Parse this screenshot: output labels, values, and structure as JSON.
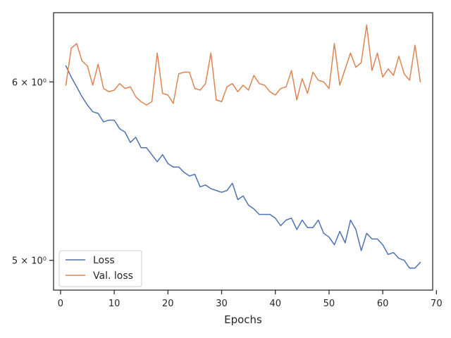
{
  "chart_data": {
    "type": "line",
    "title": "",
    "xlabel": "Epochs",
    "ylabel": "",
    "y_scale": "log",
    "xlim": [
      -1.3,
      69.3
    ],
    "ylim": [
      4.85,
      6.44
    ],
    "grid": false,
    "legend_position": "lower-left",
    "x_ticks": [
      {
        "value": 0,
        "label": "0"
      },
      {
        "value": 10,
        "label": "10"
      },
      {
        "value": 20,
        "label": "20"
      },
      {
        "value": 30,
        "label": "30"
      },
      {
        "value": 40,
        "label": "40"
      },
      {
        "value": 50,
        "label": "50"
      },
      {
        "value": 60,
        "label": "60"
      },
      {
        "value": 70,
        "label": "70"
      }
    ],
    "y_ticks": [
      {
        "value": 5,
        "label": "5 × 10⁰"
      },
      {
        "value": 6,
        "label": "6 × 10⁰"
      }
    ],
    "x": [
      1,
      2,
      3,
      4,
      5,
      6,
      7,
      8,
      9,
      10,
      11,
      12,
      13,
      14,
      15,
      16,
      17,
      18,
      19,
      20,
      21,
      22,
      23,
      24,
      25,
      26,
      27,
      28,
      29,
      30,
      31,
      32,
      33,
      34,
      35,
      36,
      37,
      38,
      39,
      40,
      41,
      42,
      43,
      44,
      45,
      46,
      47,
      48,
      49,
      50,
      51,
      52,
      53,
      54,
      55,
      56,
      57,
      58,
      59,
      60,
      61,
      62,
      63,
      64,
      65,
      66,
      67
    ],
    "series": [
      {
        "name": "Loss",
        "color": "#4c72b0",
        "values": [
          6.1,
          6.03,
          5.97,
          5.91,
          5.86,
          5.82,
          5.81,
          5.76,
          5.77,
          5.77,
          5.72,
          5.7,
          5.64,
          5.67,
          5.61,
          5.61,
          5.57,
          5.53,
          5.57,
          5.52,
          5.5,
          5.5,
          5.47,
          5.45,
          5.46,
          5.39,
          5.4,
          5.38,
          5.37,
          5.36,
          5.37,
          5.41,
          5.32,
          5.34,
          5.29,
          5.27,
          5.24,
          5.24,
          5.24,
          5.22,
          5.18,
          5.21,
          5.22,
          5.16,
          5.21,
          5.17,
          5.17,
          5.21,
          5.14,
          5.12,
          5.08,
          5.15,
          5.09,
          5.21,
          5.16,
          5.05,
          5.14,
          5.11,
          5.11,
          5.08,
          5.03,
          5.04,
          5.01,
          5.0,
          4.96,
          4.96,
          4.99
        ]
      },
      {
        "name": "Val. loss",
        "color": "#dd8452",
        "values": [
          5.98,
          6.21,
          6.24,
          6.13,
          6.1,
          5.98,
          6.11,
          5.96,
          5.94,
          5.95,
          5.99,
          5.96,
          5.97,
          5.91,
          5.88,
          5.86,
          5.88,
          6.18,
          5.93,
          5.92,
          5.87,
          6.05,
          6.06,
          6.06,
          5.96,
          5.95,
          5.99,
          6.18,
          5.89,
          5.88,
          5.97,
          5.99,
          5.94,
          5.98,
          5.95,
          6.04,
          5.99,
          5.98,
          5.94,
          5.92,
          5.96,
          5.97,
          6.07,
          5.89,
          6.02,
          5.93,
          6.06,
          6.01,
          6.0,
          5.96,
          6.24,
          5.98,
          6.08,
          6.18,
          6.09,
          6.12,
          6.36,
          6.07,
          6.18,
          6.03,
          6.08,
          6.04,
          6.16,
          6.05,
          6.01,
          6.23,
          6.0
        ]
      }
    ]
  }
}
